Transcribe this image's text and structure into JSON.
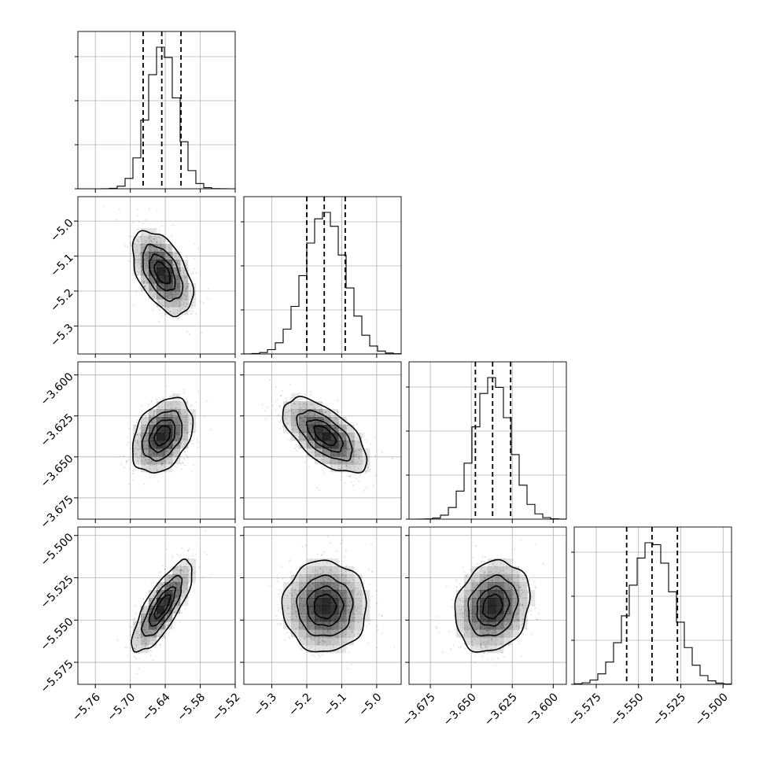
{
  "chart_data": {
    "type": "corner",
    "grid": true,
    "parameters": [
      {
        "index": 0,
        "range": [
          -5.79,
          -5.52
        ],
        "mean": -5.645,
        "std": 0.025,
        "quantiles": [
          -5.678,
          -5.646,
          -5.613
        ],
        "ticks": [
          -5.76,
          -5.7,
          -5.64,
          -5.58,
          -5.52
        ],
        "tick_labels": [
          "−5.76",
          "−5.70",
          "−5.64",
          "−5.58",
          "−5.52"
        ]
      },
      {
        "index": 1,
        "range": [
          -5.38,
          -4.93
        ],
        "mean": -5.148,
        "std": 0.058,
        "quantiles": [
          -5.2,
          -5.15,
          -5.09
        ],
        "ticks": [
          -5.3,
          -5.2,
          -5.1,
          -5.0
        ],
        "tick_labels": [
          "−5.3",
          "−5.2",
          "−5.1",
          "−5.0"
        ]
      },
      {
        "index": 2,
        "range": [
          -3.688,
          -3.592
        ],
        "mean": -3.637,
        "std": 0.011,
        "quantiles": [
          -3.6475,
          -3.637,
          -3.626
        ],
        "ticks": [
          -3.675,
          -3.65,
          -3.625,
          -3.6
        ],
        "tick_labels": [
          "−3.675",
          "−3.650",
          "−3.625",
          "−3.600"
        ]
      },
      {
        "index": 3,
        "range": [
          -5.588,
          -5.495
        ],
        "mean": -5.542,
        "std": 0.013,
        "quantiles": [
          -5.557,
          -5.542,
          -5.527
        ],
        "ticks": [
          -5.575,
          -5.55,
          -5.525,
          -5.5
        ],
        "tick_labels": [
          "−5.575",
          "−5.550",
          "−5.525",
          "−5.500"
        ]
      }
    ],
    "correlations": [
      {
        "row": 1,
        "col": 0,
        "rho": -0.5
      },
      {
        "row": 2,
        "col": 0,
        "rho": 0.35
      },
      {
        "row": 2,
        "col": 1,
        "rho": -0.62
      },
      {
        "row": 3,
        "col": 0,
        "rho": 0.78
      },
      {
        "row": 3,
        "col": 1,
        "rho": 0.0
      },
      {
        "row": 3,
        "col": 2,
        "rho": 0.18
      }
    ],
    "contour_levels_sigma": [
      0.5,
      1.0,
      1.5,
      2.0
    ],
    "histogram_bins": 20,
    "colors": {
      "frame": "#000000",
      "grid": "#b0b0b0",
      "density": "#000000",
      "points": "#555555"
    }
  }
}
